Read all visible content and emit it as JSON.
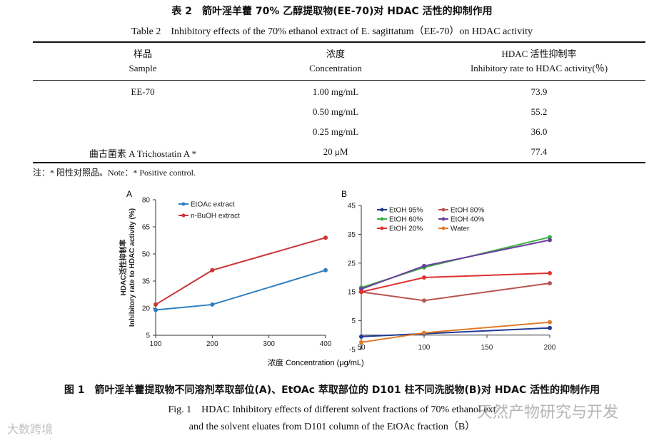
{
  "table": {
    "caption_cn": "表 2　箭叶淫羊藿 70% 乙醇提取物(EE-70)对 HDAC 活性的抑制作用",
    "caption_en": "Table 2　Inhibitory effects of the 70% ethanol extract of E. sagittatum（EE-70）on HDAC activity",
    "headers": [
      {
        "cn": "样品",
        "en": "Sample"
      },
      {
        "cn": "浓度",
        "en": "Concentration"
      },
      {
        "cn": "HDAC 活性抑制率",
        "en": "Inhibitory rate to HDAC activity(％)"
      }
    ],
    "rows": [
      {
        "sample": "EE-70",
        "conc": "1.00 mg/mL",
        "rate": "73.9"
      },
      {
        "sample": "",
        "conc": "0.50 mg/mL",
        "rate": "55.2"
      },
      {
        "sample": "",
        "conc": "0.25 mg/mL",
        "rate": "36.0"
      },
      {
        "sample": "曲古菌素 A Trichostatin A *",
        "conc": "20 μM",
        "rate": "77.4"
      }
    ],
    "note": "注：* 阳性对照品。Note：* Positive control."
  },
  "figure": {
    "caption_cn": "图 1　箭叶淫羊藿提取物不同溶剂萃取部位(A)、EtOAc 萃取部位的 D101 柱不同洗脱物(B)对 HDAC 活性的抑制作用",
    "caption_en_1": "Fig. 1　HDAC Inhibitory effects of different solvent fractions of 70%  ethanol ext",
    "caption_en_2": "and the solvent eluates from D101 column of the EtOAc fraction（B）"
  },
  "xlabel_shared": "浓度 Concentration (μg/mL)",
  "chart_data": [
    {
      "panel_label": "A",
      "type": "line",
      "x": [
        100,
        200,
        400
      ],
      "xlim": [
        100,
        400
      ],
      "xticks": [
        100,
        200,
        300,
        400
      ],
      "ylim": [
        5,
        80
      ],
      "yticks": [
        5,
        20,
        35,
        50,
        65,
        80
      ],
      "ylabel_cn": "HDAC活性抑制率",
      "ylabel_en": "Inhibitory rate to HDAC activity (%)",
      "legend_position": "top-left",
      "series": [
        {
          "name": "EtOAc extract",
          "color": "#2f7fc1",
          "values": [
            19,
            22,
            41
          ]
        },
        {
          "name": "n-BuOH extract",
          "color": "#cc3333",
          "values": [
            22,
            41,
            59
          ]
        }
      ]
    },
    {
      "panel_label": "B",
      "type": "line",
      "x": [
        50,
        100,
        200
      ],
      "xlim": [
        50,
        200
      ],
      "xticks": [
        50,
        100,
        150,
        200
      ],
      "ylim": [
        -5,
        45
      ],
      "yticks": [
        -5,
        5,
        15,
        25,
        35,
        45
      ],
      "legend_position": "top-left",
      "series": [
        {
          "name": "EtOH 95%",
          "color": "#1f3a93",
          "values": [
            -0.5,
            0.5,
            2.5
          ]
        },
        {
          "name": "EtOH 80%",
          "color": "#b85450",
          "values": [
            15,
            12,
            18
          ]
        },
        {
          "name": "EtOH 60%",
          "color": "#3cb043",
          "values": [
            16.5,
            23.5,
            34
          ]
        },
        {
          "name": "EtOH 40%",
          "color": "#6a3fa0",
          "values": [
            16,
            24,
            33
          ]
        },
        {
          "name": "EtOH 20%",
          "color": "#e03030",
          "values": [
            15,
            20,
            21.5
          ]
        },
        {
          "name": "Water",
          "color": "#e07b2a",
          "values": [
            -2.5,
            0.8,
            4.5
          ]
        }
      ]
    }
  ],
  "watermarks": {
    "right": "天然产物研究与开发",
    "left": "大数跨境"
  }
}
